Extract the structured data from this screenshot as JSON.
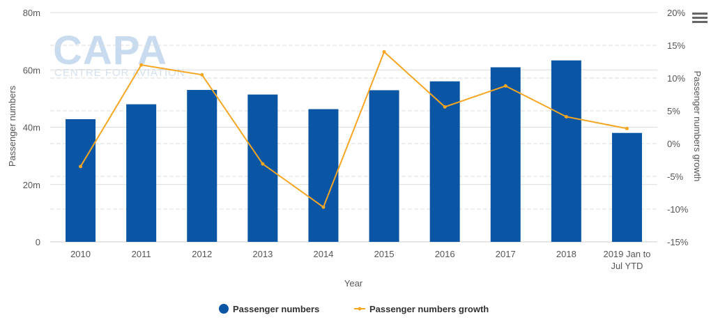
{
  "watermark": {
    "logo": "CAPA",
    "tagline": "CENTRE FOR AVIATION"
  },
  "menu_icon": "hamburger-menu-icon",
  "colors": {
    "bar": "#0b56a4",
    "line": "#f5a623",
    "grid": "#dcdcdc",
    "axis_text": "#555555"
  },
  "chart_data": {
    "type": "bar",
    "xlabel": "Year",
    "categories": [
      "2010",
      "2011",
      "2012",
      "2013",
      "2014",
      "2015",
      "2016",
      "2017",
      "2018",
      "2019 Jan to Jul YTD"
    ],
    "y_left": {
      "label": "Passenger numbers",
      "ylim": [
        0,
        80000000
      ],
      "ticks": [
        0,
        20000000,
        40000000,
        60000000,
        80000000
      ],
      "tick_labels": [
        "0",
        "20m",
        "40m",
        "60m",
        "80m"
      ]
    },
    "y_right": {
      "label": "Passenger numbers growth",
      "ylim": [
        -15,
        20
      ],
      "ticks": [
        -15,
        -10,
        -5,
        0,
        5,
        10,
        15,
        20
      ],
      "tick_labels": [
        "-15%",
        "-10%",
        "-5%",
        "0%",
        "5%",
        "10%",
        "15%",
        "20%"
      ]
    },
    "series": [
      {
        "name": "Passenger numbers",
        "type": "bar",
        "axis": "left",
        "values": [
          42800000,
          48000000,
          53000000,
          51400000,
          46300000,
          52900000,
          56000000,
          60900000,
          63300000,
          38000000
        ]
      },
      {
        "name": "Passenger numbers growth",
        "type": "line",
        "axis": "right",
        "values": [
          -3.5,
          12.0,
          10.5,
          -3.1,
          -9.7,
          14.0,
          5.6,
          8.8,
          4.1,
          2.3
        ]
      }
    ],
    "grid": true,
    "legend": "bottom-center"
  }
}
